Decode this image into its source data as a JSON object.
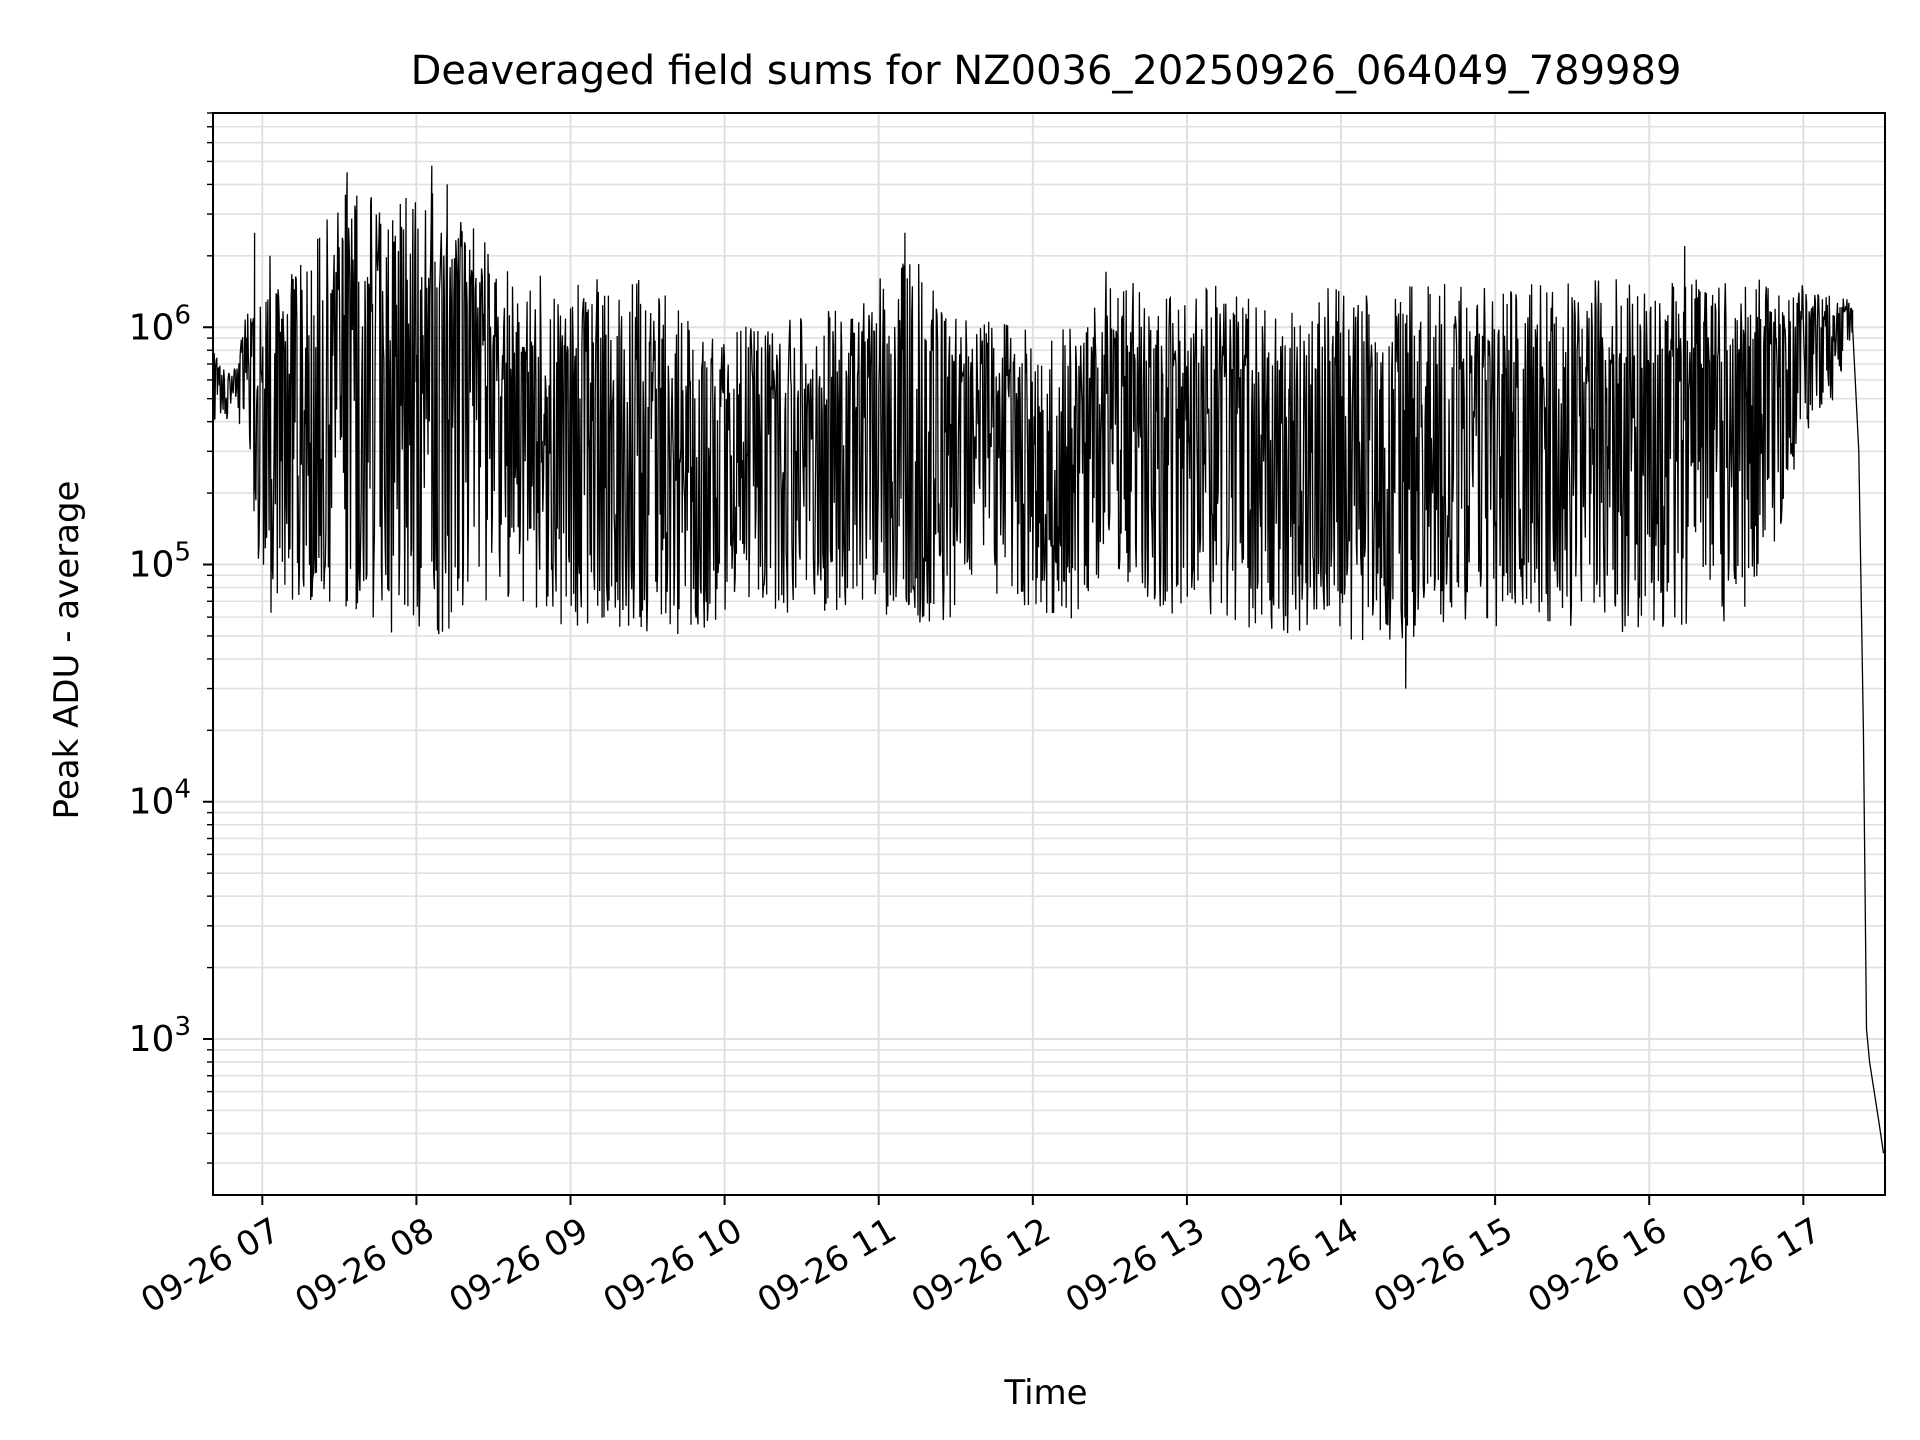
{
  "chart_data": {
    "type": "line",
    "title": "Deaveraged field sums for NZ0036_20250926_064049_789989",
    "xlabel": "Time",
    "ylabel": "Peak ADU - average",
    "yscale": "log",
    "xlim": [
      6.68,
      17.53
    ],
    "ylim": [
      220,
      8000000
    ],
    "grid": true,
    "x_ticks": [
      {
        "value": 7,
        "label": "09-26 07"
      },
      {
        "value": 8,
        "label": "09-26 08"
      },
      {
        "value": 9,
        "label": "09-26 09"
      },
      {
        "value": 10,
        "label": "09-26 10"
      },
      {
        "value": 11,
        "label": "09-26 11"
      },
      {
        "value": 12,
        "label": "09-26 12"
      },
      {
        "value": 13,
        "label": "09-26 13"
      },
      {
        "value": 14,
        "label": "09-26 14"
      },
      {
        "value": 15,
        "label": "09-26 15"
      },
      {
        "value": 16,
        "label": "09-26 16"
      },
      {
        "value": 17,
        "label": "09-26 17"
      }
    ],
    "y_ticks": [
      {
        "value": 1000,
        "base": "10",
        "exp": "3"
      },
      {
        "value": 10000,
        "base": "10",
        "exp": "4"
      },
      {
        "value": 100000,
        "base": "10",
        "exp": "5"
      },
      {
        "value": 1000000,
        "base": "10",
        "exp": "6"
      }
    ],
    "series": [
      {
        "name": "Peak ADU - average",
        "color": "#000000",
        "x_unit": "hours (2025-09-26, local)",
        "envelope": [
          {
            "t": 6.68,
            "low": 380000,
            "high": 800000
          },
          {
            "t": 6.8,
            "low": 400000,
            "high": 620000
          },
          {
            "t": 6.9,
            "low": 350000,
            "high": 1200000
          },
          {
            "t": 7.0,
            "low": 60000,
            "high": 1300000
          },
          {
            "t": 7.3,
            "low": 70000,
            "high": 2100000
          },
          {
            "t": 7.6,
            "low": 55000,
            "high": 4500000
          },
          {
            "t": 7.9,
            "low": 50000,
            "high": 3500000
          },
          {
            "t": 8.1,
            "low": 48000,
            "high": 4800000
          },
          {
            "t": 8.3,
            "low": 55000,
            "high": 3000000
          },
          {
            "t": 8.6,
            "low": 70000,
            "high": 1800000
          },
          {
            "t": 8.9,
            "low": 55000,
            "high": 1600000
          },
          {
            "t": 9.3,
            "low": 55000,
            "high": 1900000
          },
          {
            "t": 9.6,
            "low": 50000,
            "high": 1500000
          },
          {
            "t": 9.9,
            "low": 48000,
            "high": 900000
          },
          {
            "t": 10.1,
            "low": 70000,
            "high": 1000000
          },
          {
            "t": 10.5,
            "low": 60000,
            "high": 1100000
          },
          {
            "t": 10.9,
            "low": 60000,
            "high": 1300000
          },
          {
            "t": 11.2,
            "low": 55000,
            "high": 2500000
          },
          {
            "t": 11.6,
            "low": 60000,
            "high": 1100000
          },
          {
            "t": 12.0,
            "low": 55000,
            "high": 1000000
          },
          {
            "t": 12.3,
            "low": 60000,
            "high": 1000000
          },
          {
            "t": 12.5,
            "low": 100000,
            "high": 2000000
          },
          {
            "t": 12.8,
            "low": 60000,
            "high": 1300000
          },
          {
            "t": 13.1,
            "low": 55000,
            "high": 1500000
          },
          {
            "t": 13.5,
            "low": 50000,
            "high": 1500000
          },
          {
            "t": 13.9,
            "low": 50000,
            "high": 1550000
          },
          {
            "t": 14.3,
            "low": 45000,
            "high": 1500000
          },
          {
            "t": 14.7,
            "low": 55000,
            "high": 1550000
          },
          {
            "t": 15.1,
            "low": 55000,
            "high": 1500000
          },
          {
            "t": 15.5,
            "low": 52000,
            "high": 1600000
          },
          {
            "t": 15.9,
            "low": 50000,
            "high": 1600000
          },
          {
            "t": 16.3,
            "low": 55000,
            "high": 1600000
          },
          {
            "t": 16.7,
            "low": 60000,
            "high": 1600000
          },
          {
            "t": 17.0,
            "low": 350000,
            "high": 1500000
          },
          {
            "t": 17.2,
            "low": 500000,
            "high": 1400000
          },
          {
            "t": 17.32,
            "low": 900000,
            "high": 1300000
          }
        ],
        "notable_points": [
          {
            "t": 7.55,
            "value": 4500000
          },
          {
            "t": 8.1,
            "value": 4800000
          },
          {
            "t": 8.2,
            "value": 4000000
          },
          {
            "t": 7.05,
            "value": 2000000
          },
          {
            "t": 6.95,
            "value": 2500000
          },
          {
            "t": 11.17,
            "value": 2500000
          },
          {
            "t": 14.42,
            "value": 30000
          },
          {
            "t": 16.23,
            "value": 2200000
          }
        ],
        "drop": [
          {
            "t": 17.32,
            "value": 1000000
          },
          {
            "t": 17.36,
            "value": 300000
          },
          {
            "t": 17.39,
            "value": 20000
          },
          {
            "t": 17.41,
            "value": 1100
          },
          {
            "t": 17.43,
            "value": 800
          },
          {
            "t": 17.46,
            "value": 600
          },
          {
            "t": 17.49,
            "value": 450
          },
          {
            "t": 17.52,
            "value": 330
          }
        ]
      }
    ]
  }
}
